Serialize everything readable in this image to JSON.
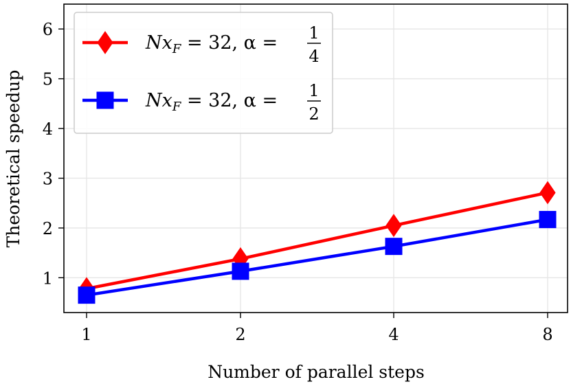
{
  "chart_data": {
    "type": "line",
    "categories": [
      "1",
      "2",
      "4",
      "8"
    ],
    "xlabel": "Number of parallel steps",
    "ylabel": "Theoretical speedup",
    "ylim": [
      0.3,
      6.5
    ],
    "yticks": [
      "1",
      "2",
      "3",
      "4",
      "5",
      "6"
    ],
    "grid": true,
    "legend_position": "top-left",
    "series": [
      {
        "name": "Nx_F = 32, α = 1/4",
        "legend_prefix": "Nx",
        "legend_sub": "F",
        "legend_mid": " = 32, α =",
        "legend_num": "1",
        "legend_den": "4",
        "color": "#ff0000",
        "marker": "diamond",
        "values": [
          0.78,
          1.38,
          2.05,
          2.71
        ]
      },
      {
        "name": "Nx_F = 32, α = 1/2",
        "legend_prefix": "Nx",
        "legend_sub": "F",
        "legend_mid": " = 32, α =",
        "legend_num": "1",
        "legend_den": "2",
        "color": "#0000ff",
        "marker": "square",
        "values": [
          0.65,
          1.13,
          1.63,
          2.17
        ]
      }
    ]
  }
}
